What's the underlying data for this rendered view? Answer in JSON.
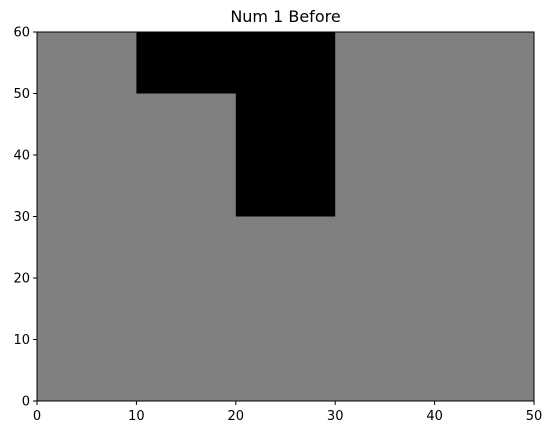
{
  "chart_data": {
    "type": "heatmap",
    "title": "Num 1 Before",
    "xlabel": "",
    "ylabel": "",
    "xlim": [
      0,
      50
    ],
    "ylim": [
      0,
      60
    ],
    "x_ticks": [
      0,
      10,
      20,
      30,
      40,
      50
    ],
    "y_ticks": [
      0,
      10,
      20,
      30,
      40,
      50,
      60
    ],
    "grid": false,
    "colors": {
      "background_region": "#808080",
      "filled_region": "#000000",
      "frame": "#000000"
    },
    "regions": [
      {
        "label": "background",
        "color": "#808080",
        "x": [
          0,
          50
        ],
        "y": [
          0,
          60
        ]
      },
      {
        "label": "top-bar",
        "color": "#000000",
        "x": [
          10,
          30
        ],
        "y": [
          50,
          60
        ]
      },
      {
        "label": "vertical-stem",
        "color": "#000000",
        "x": [
          20,
          30
        ],
        "y": [
          30,
          50
        ]
      }
    ]
  }
}
